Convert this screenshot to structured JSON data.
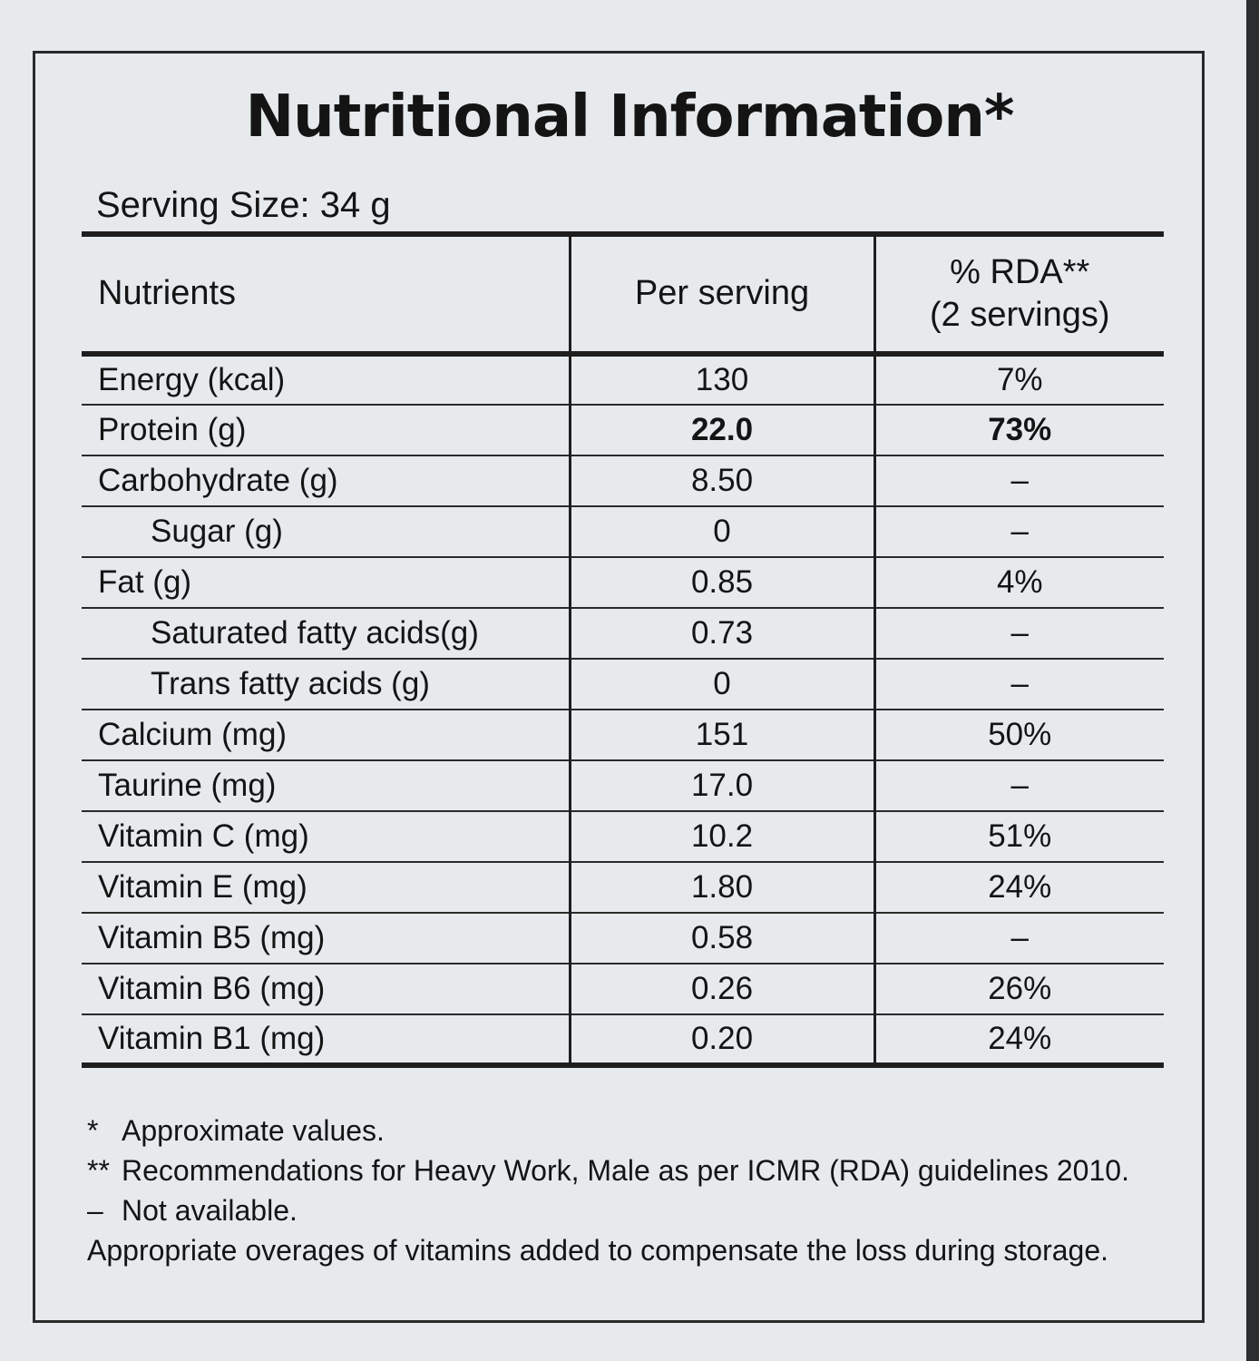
{
  "title": "Nutritional Information*",
  "serving_size": "Serving Size: 34 g",
  "table": {
    "headers": {
      "nutrients": "Nutrients",
      "per_serving": "Per serving",
      "rda_line1": "% RDA**",
      "rda_line2": "(2 servings)"
    },
    "rows": [
      {
        "name": "Energy (kcal)",
        "value": "130",
        "rda": "7%"
      },
      {
        "name": "Protein (g)",
        "value": "22.0",
        "rda": "73%"
      },
      {
        "name": "Carbohydrate (g)",
        "value": "8.50",
        "rda": "–"
      },
      {
        "name": "Sugar (g)",
        "value": "0",
        "rda": "–"
      },
      {
        "name": "Fat (g)",
        "value": "0.85",
        "rda": "4%"
      },
      {
        "name": "Saturated fatty acids(g)",
        "value": "0.73",
        "rda": "–"
      },
      {
        "name": "Trans fatty acids (g)",
        "value": "0",
        "rda": "–"
      },
      {
        "name": "Calcium (mg)",
        "value": "151",
        "rda": "50%"
      },
      {
        "name": "Taurine (mg)",
        "value": "17.0",
        "rda": "–"
      },
      {
        "name": "Vitamin C (mg)",
        "value": "10.2",
        "rda": "51%"
      },
      {
        "name": "Vitamin E (mg)",
        "value": "1.80",
        "rda": "24%"
      },
      {
        "name": "Vitamin B5 (mg)",
        "value": "0.58",
        "rda": "–"
      },
      {
        "name": "Vitamin B6 (mg)",
        "value": "0.26",
        "rda": "26%"
      },
      {
        "name": "Vitamin B1 (mg)",
        "value": "0.20",
        "rda": "24%"
      }
    ]
  },
  "notes": {
    "approx_symbol": "*",
    "approx_text": "Approximate values.",
    "rec_symbol": "**",
    "rec_text": "Recommendations for Heavy Work, Male as per ICMR (RDA) guidelines 2010.",
    "na_symbol": "–",
    "na_text": "Not available.",
    "overages": "Appropriate overages of vitamins added to compensate the loss during storage."
  }
}
